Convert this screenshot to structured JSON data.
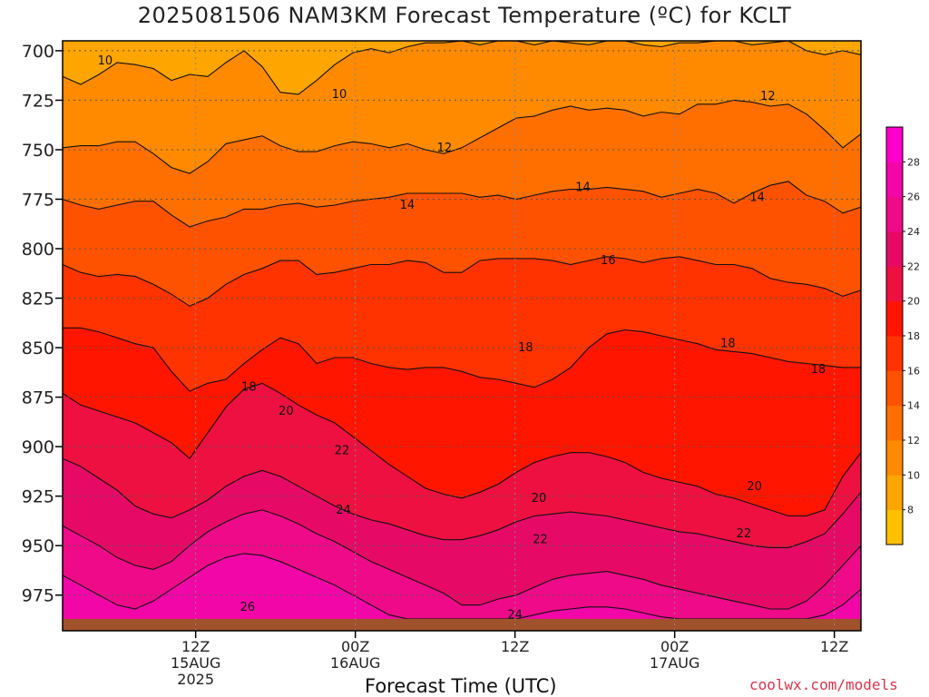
{
  "page": {
    "title": "2025081506 NAM3KM Forecast Temperature (ºC) for KCLT",
    "xlabel": "Forecast Time (UTC)",
    "credit": "coolwx.com/models"
  },
  "colors": {
    "ground": "#a0522d",
    "frame": "#000000",
    "contour": "#111111",
    "grid": "#555555"
  },
  "chart_data": {
    "type": "heatmap",
    "y_axis": {
      "label": "",
      "unit": "hPa",
      "ticks": [
        700,
        725,
        750,
        775,
        800,
        825,
        850,
        875,
        900,
        925,
        950,
        975
      ],
      "range": [
        695,
        993
      ],
      "ground_level_hPa": 987
    },
    "x_axis": {
      "range_hours": [
        -10,
        50
      ],
      "ticks": [
        {
          "hour": 0,
          "lines": [
            "12Z",
            "15AUG",
            "2025"
          ]
        },
        {
          "hour": 12,
          "lines": [
            "00Z",
            "16AUG"
          ]
        },
        {
          "hour": 24,
          "lines": [
            "12Z"
          ]
        },
        {
          "hour": 36,
          "lines": [
            "00Z",
            "17AUG"
          ]
        },
        {
          "hour": 48,
          "lines": [
            "12Z"
          ]
        }
      ]
    },
    "colorbar": {
      "labels": [
        8,
        10,
        12,
        14,
        16,
        18,
        20,
        22,
        24,
        26,
        28
      ],
      "levels": [
        6,
        8,
        10,
        12,
        14,
        16,
        18,
        20,
        22,
        24,
        26,
        28,
        30
      ],
      "colors": [
        "#ffc000",
        "#ffa500",
        "#ff8a00",
        "#ff6f00",
        "#ff5200",
        "#ff3300",
        "#ff1500",
        "#ee1040",
        "#e60a66",
        "#ee0a88",
        "#f206a8",
        "#ff00cc"
      ]
    },
    "contours": [
      {
        "value": 10,
        "pressure": [
          713,
          717,
          712,
          706,
          707,
          709,
          715,
          712,
          713,
          706,
          700,
          708,
          721,
          722,
          715,
          707,
          701,
          699,
          701,
          698,
          696,
          696,
          695,
          697,
          695,
          695,
          697,
          695,
          696,
          697,
          695,
          695,
          697,
          698,
          696,
          696,
          695,
          695,
          697,
          696,
          695,
          700,
          702,
          700,
          702
        ]
      },
      {
        "value": 12,
        "pressure": [
          749,
          748,
          748,
          746,
          746,
          752,
          759,
          762,
          756,
          747,
          745,
          743,
          748,
          751,
          751,
          748,
          746,
          747,
          749,
          747,
          750,
          752,
          749,
          744,
          739,
          734,
          733,
          730,
          728,
          730,
          729,
          730,
          733,
          731,
          732,
          727,
          727,
          725,
          726,
          728,
          727,
          732,
          740,
          749,
          742
        ]
      },
      {
        "value": 14,
        "pressure": [
          775,
          778,
          780,
          778,
          776,
          776,
          783,
          789,
          786,
          784,
          780,
          780,
          778,
          777,
          779,
          778,
          776,
          775,
          774,
          772,
          772,
          772,
          772,
          774,
          773,
          775,
          773,
          771,
          770,
          770,
          769,
          770,
          771,
          774,
          772,
          770,
          772,
          777,
          772,
          768,
          766,
          773,
          776,
          782,
          779
        ]
      },
      {
        "value": 16,
        "pressure": [
          808,
          812,
          814,
          813,
          814,
          818,
          823,
          829,
          825,
          818,
          813,
          810,
          806,
          806,
          813,
          812,
          810,
          808,
          808,
          806,
          807,
          812,
          812,
          806,
          805,
          805,
          805,
          806,
          808,
          806,
          804,
          805,
          807,
          805,
          804,
          806,
          808,
          808,
          810,
          815,
          817,
          818,
          820,
          824,
          821
        ]
      },
      {
        "value": 18,
        "pressure": [
          840,
          840,
          842,
          845,
          848,
          850,
          862,
          872,
          868,
          866,
          858,
          851,
          845,
          848,
          858,
          855,
          855,
          858,
          860,
          861,
          860,
          860,
          862,
          865,
          866,
          868,
          870,
          866,
          860,
          850,
          843,
          841,
          842,
          844,
          846,
          848,
          851,
          852,
          853,
          855,
          857,
          858,
          859,
          860,
          860
        ]
      },
      {
        "value": 20,
        "pressure": [
          873,
          879,
          882,
          885,
          888,
          893,
          898,
          906,
          893,
          880,
          871,
          868,
          873,
          879,
          884,
          888,
          895,
          902,
          909,
          915,
          921,
          924,
          926,
          923,
          919,
          913,
          908,
          905,
          903,
          903,
          905,
          908,
          913,
          916,
          918,
          920,
          924,
          926,
          929,
          932,
          935,
          935,
          932,
          915,
          903
        ]
      },
      {
        "value": 22,
        "pressure": [
          906,
          910,
          916,
          922,
          930,
          934,
          936,
          932,
          927,
          920,
          915,
          912,
          915,
          920,
          925,
          930,
          934,
          937,
          939,
          942,
          945,
          947,
          947,
          945,
          942,
          938,
          935,
          934,
          933,
          934,
          935,
          937,
          939,
          941,
          943,
          944,
          946,
          948,
          950,
          951,
          951,
          948,
          944,
          934,
          923
        ]
      },
      {
        "value": 24,
        "pressure": [
          940,
          945,
          950,
          956,
          960,
          962,
          958,
          950,
          943,
          938,
          934,
          932,
          935,
          939,
          944,
          948,
          953,
          958,
          962,
          966,
          970,
          974,
          980,
          980,
          977,
          975,
          971,
          967,
          965,
          964,
          963,
          965,
          967,
          970,
          972,
          974,
          976,
          978,
          980,
          982,
          982,
          978,
          970,
          960,
          950
        ]
      },
      {
        "value": 26,
        "pressure": [
          965,
          970,
          975,
          980,
          982,
          978,
          972,
          966,
          960,
          956,
          954,
          955,
          958,
          962,
          966,
          970,
          975,
          980,
          985,
          987,
          987,
          987,
          987,
          987,
          987,
          987,
          985,
          983,
          982,
          981,
          981,
          982,
          984,
          986,
          987,
          987,
          987,
          987,
          987,
          987,
          987,
          987,
          985,
          980,
          972
        ]
      }
    ],
    "contour_labels": [
      {
        "text": "10",
        "hour": -6.8,
        "pressure": 705
      },
      {
        "text": "10",
        "hour": 10.8,
        "pressure": 722
      },
      {
        "text": "12",
        "hour": 18.7,
        "pressure": 749
      },
      {
        "text": "12",
        "hour": 43.0,
        "pressure": 723
      },
      {
        "text": "14",
        "hour": 15.9,
        "pressure": 778
      },
      {
        "text": "14",
        "hour": 29.1,
        "pressure": 769
      },
      {
        "text": "14",
        "hour": 42.2,
        "pressure": 774
      },
      {
        "text": "16",
        "hour": 31.0,
        "pressure": 806
      },
      {
        "text": "18",
        "hour": 4.0,
        "pressure": 870
      },
      {
        "text": "18",
        "hour": 24.8,
        "pressure": 850
      },
      {
        "text": "18",
        "hour": 40.0,
        "pressure": 848
      },
      {
        "text": "18",
        "hour": 46.8,
        "pressure": 861
      },
      {
        "text": "20",
        "hour": 6.8,
        "pressure": 882
      },
      {
        "text": "20",
        "hour": 25.8,
        "pressure": 926
      },
      {
        "text": "20",
        "hour": 42.0,
        "pressure": 920
      },
      {
        "text": "22",
        "hour": 11.0,
        "pressure": 902
      },
      {
        "text": "22",
        "hour": 25.9,
        "pressure": 947
      },
      {
        "text": "22",
        "hour": 41.2,
        "pressure": 944
      },
      {
        "text": "24",
        "hour": 11.1,
        "pressure": 932
      },
      {
        "text": "24",
        "hour": 24.0,
        "pressure": 985
      },
      {
        "text": "26",
        "hour": 3.9,
        "pressure": 981
      }
    ]
  }
}
